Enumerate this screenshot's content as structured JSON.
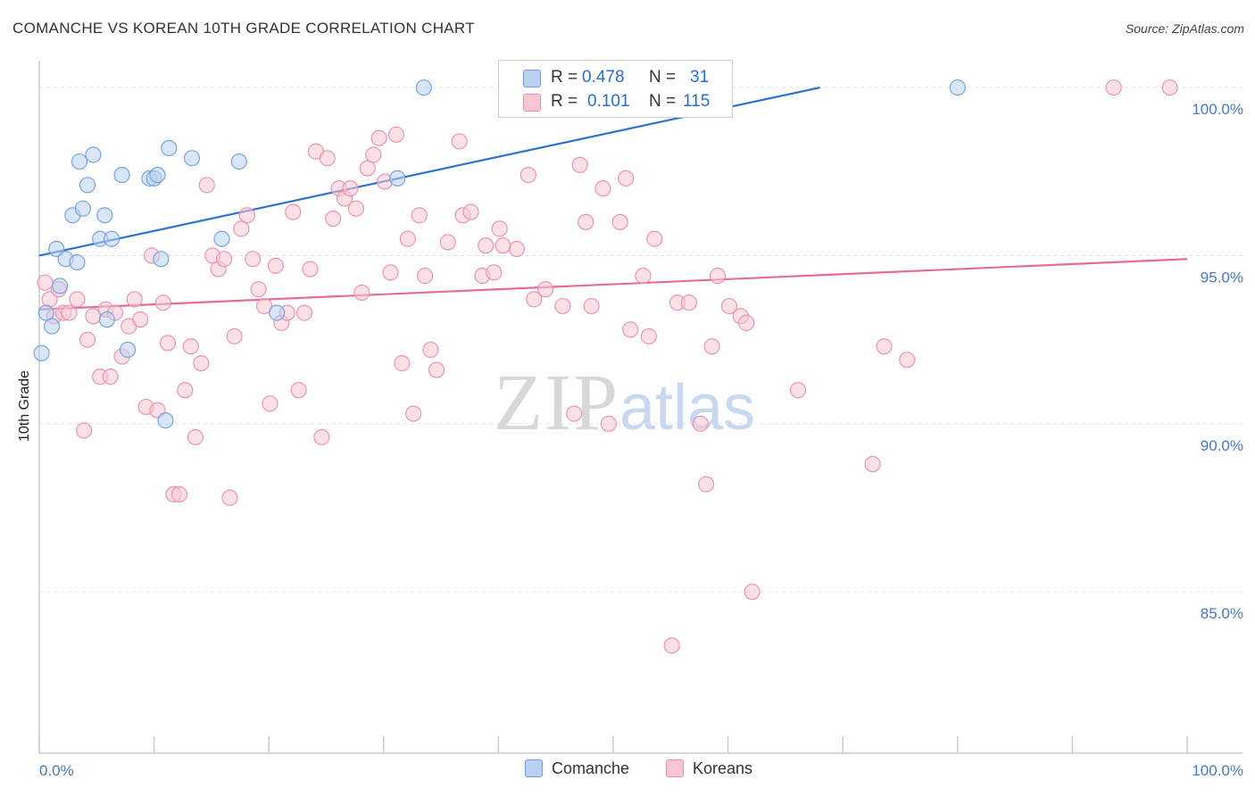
{
  "title": "COMANCHE VS KOREAN 10TH GRADE CORRELATION CHART",
  "source": "Source: ZipAtlas.com",
  "watermark": {
    "zip": "ZIP",
    "atlas": "atlas"
  },
  "legend": {
    "rows": [
      {
        "r_label": "R =",
        "r_value": "0.478",
        "n_label": "N =",
        "n_value": "31"
      },
      {
        "r_label": "R =",
        "r_value": "0.101",
        "n_label": "N =",
        "n_value": "115"
      }
    ]
  },
  "bottom_legend": {
    "series1": "Comanche",
    "series2": "Koreans"
  },
  "colors": {
    "comanche_fill": "#b9d1f2",
    "comanche_stroke": "#6f9ee0",
    "comanche_line": "#2f72d0",
    "koreans_fill": "#f8c6d5",
    "koreans_stroke": "#eb8eab",
    "koreans_line": "#e46d97",
    "axis": "#cccccc",
    "grid": "#e2e2e2"
  },
  "chart_data": {
    "type": "scatter",
    "title": "COMANCHE VS KOREAN 10TH GRADE CORRELATION CHART",
    "xlabel": "",
    "ylabel": "10th Grade",
    "xlim": [
      0,
      100
    ],
    "ylim": [
      80.2,
      100.8
    ],
    "x_tick_labels": [
      "0.0%",
      "100.0%"
    ],
    "y_ticks": [
      85,
      90,
      95,
      100
    ],
    "y_tick_labels": [
      "85.0%",
      "90.0%",
      "95.0%",
      "100.0%"
    ],
    "grid": true,
    "series": [
      {
        "name": "Comanche",
        "r": 0.478,
        "n": 31,
        "trend": {
          "x0": 0,
          "y0": 95.0,
          "x1": 68,
          "y1": 100.0
        },
        "points": [
          [
            0.2,
            92.1
          ],
          [
            0.6,
            93.3
          ],
          [
            1.1,
            92.9
          ],
          [
            1.5,
            95.2
          ],
          [
            1.8,
            94.1
          ],
          [
            2.3,
            94.9
          ],
          [
            2.9,
            96.2
          ],
          [
            3.3,
            94.8
          ],
          [
            3.5,
            97.8
          ],
          [
            3.8,
            96.4
          ],
          [
            4.2,
            97.1
          ],
          [
            4.7,
            98.0
          ],
          [
            5.3,
            95.5
          ],
          [
            5.7,
            96.2
          ],
          [
            5.9,
            93.1
          ],
          [
            6.3,
            95.5
          ],
          [
            7.2,
            97.4
          ],
          [
            7.7,
            92.2
          ],
          [
            9.6,
            97.3
          ],
          [
            10.0,
            97.3
          ],
          [
            10.3,
            97.4
          ],
          [
            10.6,
            94.9
          ],
          [
            11.0,
            90.1
          ],
          [
            11.3,
            98.2
          ],
          [
            13.3,
            97.9
          ],
          [
            15.9,
            95.5
          ],
          [
            17.4,
            97.8
          ],
          [
            20.7,
            93.3
          ],
          [
            31.2,
            97.3
          ],
          [
            33.5,
            100.0
          ],
          [
            80.0,
            100.0
          ]
        ]
      },
      {
        "name": "Koreans",
        "r": 0.101,
        "n": 115,
        "trend": {
          "x0": 0,
          "y0": 93.4,
          "x1": 100,
          "y1": 94.9
        },
        "points": [
          [
            0.5,
            94.2
          ],
          [
            0.9,
            93.7
          ],
          [
            1.3,
            93.2
          ],
          [
            1.7,
            94.0
          ],
          [
            2.1,
            93.3
          ],
          [
            2.6,
            93.3
          ],
          [
            3.3,
            93.7
          ],
          [
            3.9,
            89.8
          ],
          [
            4.2,
            92.5
          ],
          [
            4.7,
            93.2
          ],
          [
            5.3,
            91.4
          ],
          [
            5.8,
            93.4
          ],
          [
            6.2,
            91.4
          ],
          [
            6.6,
            93.3
          ],
          [
            7.2,
            92.0
          ],
          [
            7.8,
            92.9
          ],
          [
            8.3,
            93.7
          ],
          [
            8.8,
            93.1
          ],
          [
            9.3,
            90.5
          ],
          [
            9.8,
            95.0
          ],
          [
            10.3,
            90.4
          ],
          [
            10.8,
            93.6
          ],
          [
            11.2,
            92.4
          ],
          [
            11.7,
            87.9
          ],
          [
            12.2,
            87.9
          ],
          [
            12.7,
            91.0
          ],
          [
            13.2,
            92.3
          ],
          [
            13.6,
            89.6
          ],
          [
            14.1,
            91.8
          ],
          [
            14.6,
            97.1
          ],
          [
            15.1,
            95.0
          ],
          [
            15.6,
            94.6
          ],
          [
            16.1,
            94.9
          ],
          [
            16.6,
            87.8
          ],
          [
            17.0,
            92.6
          ],
          [
            17.6,
            95.8
          ],
          [
            18.1,
            96.2
          ],
          [
            18.6,
            94.9
          ],
          [
            19.1,
            94.0
          ],
          [
            19.6,
            93.5
          ],
          [
            20.1,
            90.6
          ],
          [
            20.6,
            94.7
          ],
          [
            21.1,
            93.0
          ],
          [
            21.6,
            93.3
          ],
          [
            22.1,
            96.3
          ],
          [
            22.6,
            91.0
          ],
          [
            23.1,
            93.3
          ],
          [
            23.6,
            94.6
          ],
          [
            24.1,
            98.1
          ],
          [
            24.6,
            89.6
          ],
          [
            25.1,
            97.9
          ],
          [
            25.6,
            96.1
          ],
          [
            26.1,
            97.0
          ],
          [
            26.6,
            96.7
          ],
          [
            27.1,
            97.0
          ],
          [
            27.6,
            96.4
          ],
          [
            28.1,
            93.9
          ],
          [
            28.6,
            97.6
          ],
          [
            29.1,
            98.0
          ],
          [
            29.6,
            98.5
          ],
          [
            30.1,
            97.2
          ],
          [
            30.6,
            94.5
          ],
          [
            31.1,
            98.6
          ],
          [
            31.6,
            91.8
          ],
          [
            32.1,
            95.5
          ],
          [
            32.6,
            90.3
          ],
          [
            33.1,
            96.2
          ],
          [
            33.6,
            94.4
          ],
          [
            34.1,
            92.2
          ],
          [
            34.6,
            91.6
          ],
          [
            35.6,
            95.4
          ],
          [
            36.6,
            98.4
          ],
          [
            36.9,
            96.2
          ],
          [
            37.6,
            96.3
          ],
          [
            38.6,
            94.4
          ],
          [
            38.9,
            95.3
          ],
          [
            39.6,
            94.5
          ],
          [
            40.1,
            95.8
          ],
          [
            40.4,
            95.3
          ],
          [
            41.6,
            95.2
          ],
          [
            42.6,
            97.4
          ],
          [
            43.1,
            93.7
          ],
          [
            44.1,
            94.0
          ],
          [
            45.6,
            93.5
          ],
          [
            46.6,
            90.3
          ],
          [
            47.1,
            97.7
          ],
          [
            47.6,
            96.0
          ],
          [
            48.1,
            93.5
          ],
          [
            49.1,
            97.0
          ],
          [
            49.6,
            90.0
          ],
          [
            50.6,
            96.0
          ],
          [
            51.1,
            97.3
          ],
          [
            51.5,
            92.8
          ],
          [
            52.6,
            94.4
          ],
          [
            53.1,
            92.6
          ],
          [
            53.6,
            95.5
          ],
          [
            55.1,
            83.4
          ],
          [
            55.6,
            93.6
          ],
          [
            56.6,
            93.6
          ],
          [
            57.6,
            90.0
          ],
          [
            58.1,
            88.2
          ],
          [
            58.6,
            92.3
          ],
          [
            59.1,
            94.4
          ],
          [
            60.1,
            93.5
          ],
          [
            61.1,
            93.2
          ],
          [
            61.6,
            93.0
          ],
          [
            62.1,
            85.0
          ],
          [
            66.1,
            91.0
          ],
          [
            72.6,
            88.8
          ],
          [
            73.6,
            92.3
          ],
          [
            75.6,
            91.9
          ],
          [
            93.6,
            100.0
          ],
          [
            98.5,
            100.0
          ]
        ]
      }
    ]
  }
}
